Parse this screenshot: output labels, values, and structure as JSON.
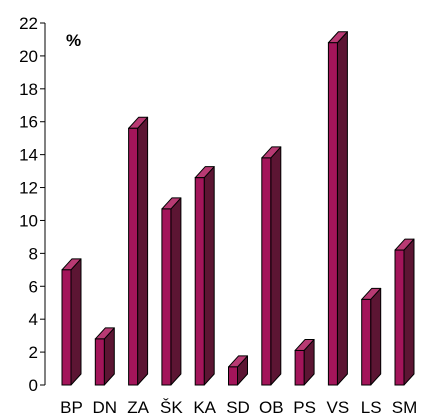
{
  "chart_data": {
    "type": "bar",
    "ylabel": "%",
    "ylim": [
      0,
      22
    ],
    "yticks": [
      0,
      2,
      4,
      6,
      8,
      10,
      12,
      14,
      16,
      18,
      20,
      22
    ],
    "categories": [
      "BP",
      "DN",
      "ZA",
      "ŠK",
      "KA",
      "SD",
      "OB",
      "PS",
      "VS",
      "LS",
      "SM"
    ],
    "values": [
      7.0,
      2.8,
      15.6,
      10.7,
      12.6,
      1.1,
      13.8,
      2.1,
      20.8,
      5.2,
      8.2
    ],
    "colors": {
      "front": "#a3155a",
      "side": "#5c1533",
      "top": "#b83a73",
      "edge": "#000000"
    },
    "grid": false
  }
}
